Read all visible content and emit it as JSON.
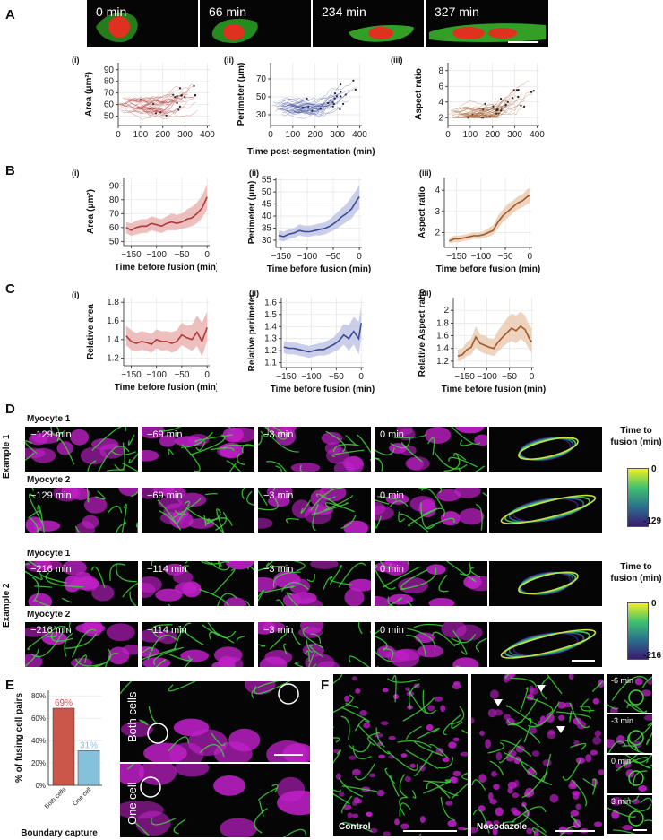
{
  "colors": {
    "area": "#b03a3a",
    "area_fill": "#e8aaaa",
    "perimeter": "#3a4a9a",
    "perimeter_fill": "#b8bde0",
    "aspect": "#a0582a",
    "aspect_fill": "#e8c4a8",
    "membrane_green": "#3fd23a",
    "nucleus_magenta": "#c020c8",
    "bar_both": "#c9574a",
    "bar_one": "#86c1dc"
  },
  "panels": {
    "A": {
      "letter": "A",
      "snapshots": [
        "0 min",
        "66 min",
        "234 min",
        "327 min"
      ],
      "sub_i": "(i)",
      "sub_ii": "(ii)",
      "sub_iii": "(iii)",
      "shared_xlabel": "Time post-segmentation (min)"
    },
    "B": {
      "letter": "B",
      "sub_i": "(i)",
      "sub_ii": "(ii)",
      "sub_iii": "(iii)"
    },
    "C": {
      "letter": "C",
      "sub_i": "(i)",
      "sub_ii": "(ii)",
      "sub_iii": "(iii)"
    },
    "D": {
      "letter": "D",
      "example1": "Example 1",
      "example2": "Example 2",
      "myocyte1": "Myocyte 1",
      "myocyte2": "Myocyte 2",
      "ex1_times": [
        "−129 min",
        "−69 min",
        "−3 min",
        "0 min"
      ],
      "ex2_times": [
        "−216 min",
        "−114 min",
        "−3 min",
        "0 min"
      ],
      "colorbar_title": "Time to fusion (min)",
      "cb1_top": "0",
      "cb1_bottom": "-129",
      "cb2_top": "0",
      "cb2_bottom": "-216"
    },
    "E": {
      "letter": "E",
      "both_cells": "Both cells",
      "one_cell": "One cell"
    },
    "F": {
      "letter": "F",
      "control": "Control",
      "nocodazole": "Nocodazole",
      "times": [
        "-6 min",
        "-3 min",
        "0 min",
        "3 min"
      ]
    }
  },
  "chart_data": [
    {
      "id": "A-i",
      "type": "line",
      "ylabel": "Area (μm²)",
      "xlabel": "",
      "xticks": [
        0,
        100,
        200,
        300,
        400
      ],
      "yticks": [
        50,
        60,
        70,
        80,
        90
      ],
      "xlim": [
        0,
        410
      ],
      "ylim": [
        42,
        96
      ]
    },
    {
      "id": "A-ii",
      "type": "line",
      "ylabel": "Perimeter (μm)",
      "xlabel": "",
      "xticks": [
        0,
        100,
        200,
        300,
        400
      ],
      "yticks": [
        30,
        50,
        70
      ],
      "xlim": [
        0,
        410
      ],
      "ylim": [
        18,
        88
      ]
    },
    {
      "id": "A-iii",
      "type": "line",
      "ylabel": "Aspect ratio",
      "xlabel": "",
      "xticks": [
        0,
        100,
        200,
        300,
        400
      ],
      "yticks": [
        2,
        4,
        6,
        8
      ],
      "xlim": [
        0,
        410
      ],
      "ylim": [
        1,
        9
      ]
    },
    {
      "id": "B-i",
      "type": "area",
      "ylabel": "Area (μm²)",
      "xlabel": "Time before fusion (min)",
      "xticks": [
        -150,
        -100,
        -50,
        0
      ],
      "yticks": [
        50,
        60,
        70,
        80,
        90
      ],
      "xlim": [
        -165,
        5
      ],
      "ylim": [
        47,
        96
      ],
      "x": [
        -160,
        -150,
        -140,
        -130,
        -120,
        -110,
        -100,
        -90,
        -80,
        -70,
        -60,
        -50,
        -40,
        -30,
        -20,
        -10,
        0
      ],
      "values": [
        60,
        58,
        60,
        61,
        61,
        63,
        62,
        61,
        63,
        64,
        63,
        64,
        66,
        67,
        70,
        74,
        82
      ],
      "lower": [
        56,
        54,
        55,
        56,
        56,
        58,
        57,
        56,
        58,
        58,
        58,
        59,
        60,
        61,
        63,
        67,
        73
      ],
      "upper": [
        64,
        63,
        65,
        66,
        66,
        68,
        67,
        66,
        68,
        70,
        69,
        70,
        73,
        75,
        78,
        83,
        91
      ]
    },
    {
      "id": "B-ii",
      "type": "area",
      "ylabel": "Perimeter (μm)",
      "xlabel": "Time before fusion (min)",
      "xticks": [
        -150,
        -100,
        -50,
        0
      ],
      "yticks": [
        30,
        35,
        40,
        45,
        50,
        55
      ],
      "xlim": [
        -160,
        5
      ],
      "ylim": [
        27,
        56
      ],
      "x": [
        -155,
        -145,
        -135,
        -125,
        -115,
        -105,
        -95,
        -85,
        -75,
        -65,
        -55,
        -45,
        -35,
        -25,
        -15,
        -5,
        0
      ],
      "values": [
        32,
        31.5,
        32.5,
        33,
        34,
        33.5,
        33.5,
        34,
        34.5,
        35,
        36,
        37.5,
        39.5,
        41,
        43,
        46.5,
        48
      ],
      "lower": [
        30,
        29.5,
        30.5,
        31,
        32,
        31.5,
        31.5,
        32,
        32,
        32.5,
        33.5,
        34.5,
        36,
        37.5,
        39,
        42,
        43
      ],
      "upper": [
        34,
        33.5,
        34.5,
        35,
        36.5,
        36,
        36,
        36.5,
        37,
        37.5,
        39,
        41,
        43,
        45,
        48,
        51,
        53
      ]
    },
    {
      "id": "B-iii",
      "type": "area",
      "ylabel": "Aspect ratio",
      "xlabel": "Time before fusion (min)",
      "xticks": [
        -150,
        -100,
        -50,
        0
      ],
      "yticks": [
        2,
        3,
        4
      ],
      "xlim": [
        -175,
        5
      ],
      "ylim": [
        1.3,
        4.6
      ],
      "x": [
        -165,
        -155,
        -145,
        -135,
        -125,
        -115,
        -105,
        -95,
        -85,
        -75,
        -65,
        -55,
        -45,
        -35,
        -25,
        -15,
        -5,
        0
      ],
      "values": [
        1.6,
        1.7,
        1.7,
        1.75,
        1.8,
        1.85,
        1.85,
        1.9,
        2.0,
        2.1,
        2.5,
        2.8,
        3.0,
        3.2,
        3.4,
        3.5,
        3.7,
        3.75
      ],
      "lower": [
        1.5,
        1.55,
        1.55,
        1.6,
        1.65,
        1.7,
        1.7,
        1.75,
        1.8,
        1.9,
        2.2,
        2.5,
        2.7,
        2.9,
        3.1,
        3.2,
        3.35,
        3.4
      ],
      "upper": [
        1.75,
        1.85,
        1.85,
        1.9,
        1.95,
        2.0,
        2.0,
        2.05,
        2.2,
        2.35,
        2.8,
        3.1,
        3.35,
        3.5,
        3.7,
        3.8,
        4.05,
        4.1
      ]
    },
    {
      "id": "C-i",
      "type": "area",
      "ylabel": "Relative area",
      "xlabel": "Time before fusion (min)",
      "xticks": [
        -150,
        -100,
        -50,
        0
      ],
      "yticks": [
        1.2,
        1.4,
        1.6,
        1.8
      ],
      "xlim": [
        -165,
        5
      ],
      "ylim": [
        1.12,
        1.85
      ],
      "x": [
        -160,
        -150,
        -140,
        -130,
        -120,
        -110,
        -100,
        -90,
        -80,
        -70,
        -60,
        -50,
        -40,
        -30,
        -20,
        -10,
        0
      ],
      "values": [
        1.44,
        1.38,
        1.36,
        1.38,
        1.37,
        1.35,
        1.4,
        1.38,
        1.38,
        1.36,
        1.38,
        1.45,
        1.42,
        1.4,
        1.48,
        1.38,
        1.53
      ],
      "lower": [
        1.34,
        1.29,
        1.27,
        1.29,
        1.28,
        1.26,
        1.31,
        1.28,
        1.29,
        1.26,
        1.28,
        1.34,
        1.31,
        1.28,
        1.33,
        1.22,
        1.38
      ],
      "upper": [
        1.55,
        1.5,
        1.47,
        1.49,
        1.48,
        1.46,
        1.51,
        1.49,
        1.49,
        1.48,
        1.5,
        1.58,
        1.55,
        1.56,
        1.66,
        1.58,
        1.7
      ]
    },
    {
      "id": "C-ii",
      "type": "area",
      "ylabel": "Relative perimeter",
      "xlabel": "Time before fusion (min)",
      "xticks": [
        -150,
        -100,
        -50,
        0
      ],
      "yticks": [
        1.1,
        1.2,
        1.3,
        1.4,
        1.5,
        1.6
      ],
      "xlim": [
        -160,
        5
      ],
      "ylim": [
        1.06,
        1.64
      ],
      "x": [
        -155,
        -145,
        -135,
        -125,
        -115,
        -105,
        -95,
        -85,
        -75,
        -65,
        -55,
        -45,
        -35,
        -25,
        -15,
        -5,
        0
      ],
      "values": [
        1.23,
        1.22,
        1.22,
        1.21,
        1.2,
        1.19,
        1.2,
        1.21,
        1.21,
        1.23,
        1.25,
        1.28,
        1.33,
        1.3,
        1.36,
        1.3,
        1.43
      ],
      "lower": [
        1.18,
        1.17,
        1.17,
        1.16,
        1.15,
        1.14,
        1.15,
        1.16,
        1.16,
        1.17,
        1.19,
        1.21,
        1.25,
        1.2,
        1.25,
        1.17,
        1.3
      ],
      "upper": [
        1.28,
        1.27,
        1.27,
        1.26,
        1.25,
        1.24,
        1.25,
        1.26,
        1.27,
        1.29,
        1.31,
        1.36,
        1.42,
        1.41,
        1.48,
        1.44,
        1.57
      ]
    },
    {
      "id": "C-iii",
      "type": "area",
      "ylabel": "Relative Aspect ratio",
      "xlabel": "Time before fusion (min)",
      "xticks": [
        -150,
        -100,
        -50,
        0
      ],
      "yticks": [
        1.2,
        1.4,
        1.6,
        1.8,
        2.0
      ],
      "xlim": [
        -175,
        5
      ],
      "ylim": [
        1.1,
        2.2
      ],
      "x": [
        -165,
        -155,
        -145,
        -135,
        -125,
        -115,
        -105,
        -95,
        -85,
        -75,
        -65,
        -55,
        -45,
        -35,
        -25,
        -15,
        -5,
        0
      ],
      "values": [
        1.28,
        1.3,
        1.38,
        1.42,
        1.58,
        1.48,
        1.45,
        1.42,
        1.4,
        1.5,
        1.58,
        1.65,
        1.72,
        1.68,
        1.75,
        1.7,
        1.55,
        1.5
      ],
      "lower": [
        1.2,
        1.22,
        1.28,
        1.3,
        1.42,
        1.35,
        1.32,
        1.3,
        1.28,
        1.35,
        1.42,
        1.48,
        1.52,
        1.48,
        1.55,
        1.5,
        1.38,
        1.32
      ],
      "upper": [
        1.38,
        1.4,
        1.5,
        1.55,
        1.75,
        1.62,
        1.6,
        1.56,
        1.55,
        1.68,
        1.78,
        1.88,
        1.95,
        1.92,
        1.98,
        1.92,
        1.75,
        1.72
      ]
    },
    {
      "id": "E",
      "type": "bar",
      "ylabel": "% of fusing cell pairs",
      "xlabel": "Boundary capture",
      "categories": [
        "Both cells",
        "One cell"
      ],
      "values": [
        69,
        31
      ],
      "data_labels": [
        "69%",
        "31%"
      ],
      "yticks": [
        "0%",
        "20%",
        "40%",
        "60%",
        "80%"
      ],
      "ylim": [
        0,
        85
      ]
    }
  ]
}
